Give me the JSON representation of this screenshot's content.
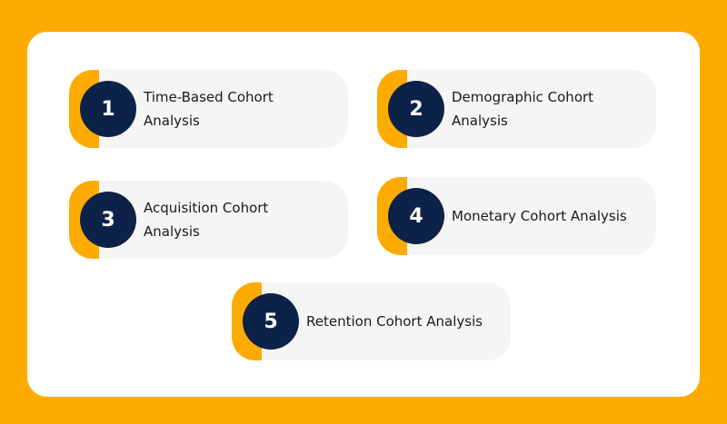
{
  "diagram": {
    "items": [
      {
        "number": "1",
        "label": "Time-Based Cohort Analysis"
      },
      {
        "number": "2",
        "label": "Demographic Cohort Analysis"
      },
      {
        "number": "3",
        "label": "Acquisition Cohort Analysis"
      },
      {
        "number": "4",
        "label": "Monetary Cohort Analysis"
      },
      {
        "number": "5",
        "label": "Retention Cohort Analysis"
      }
    ]
  },
  "colors": {
    "background": "#FDAB00",
    "panel": "#FFFFFF",
    "card": "#F5F5F5",
    "badge": "#0D2248",
    "accent": "#FDAB00"
  }
}
